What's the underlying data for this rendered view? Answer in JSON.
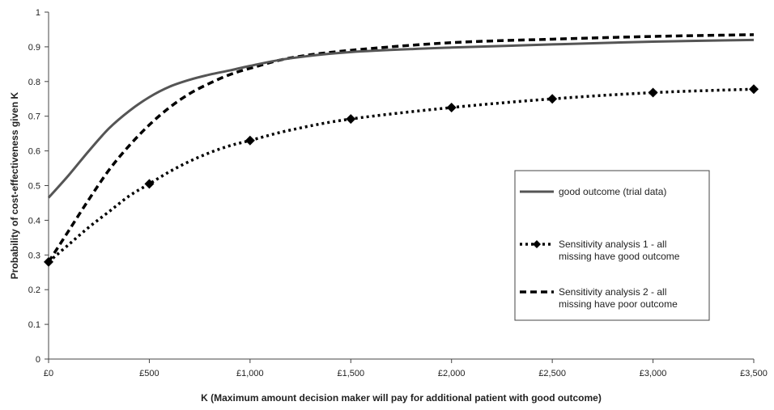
{
  "chart_data": {
    "type": "line",
    "title": "",
    "xlabel": "K (Maximum amount decision maker will pay for additional patient with good outcome)",
    "ylabel": "Probability of cost-effectiveness given K",
    "xlim": [
      0,
      3500
    ],
    "ylim": [
      0,
      1
    ],
    "x_ticks": [
      0,
      500,
      1000,
      1500,
      2000,
      2500,
      3000,
      3500
    ],
    "x_tick_labels": [
      "£0",
      "£500",
      "£1,000",
      "£1,500",
      "£2,000",
      "£2,500",
      "£3,000",
      "£3,500"
    ],
    "y_ticks": [
      0,
      0.1,
      0.2,
      0.3,
      0.4,
      0.5,
      0.6,
      0.7,
      0.8,
      0.9,
      1
    ],
    "y_tick_labels": [
      "0",
      "0.1",
      "0.2",
      "0.3",
      "0.4",
      "0.5",
      "0.6",
      "0.7",
      "0.8",
      "0.9",
      "1"
    ],
    "grid": false,
    "legend_position": "right",
    "series": [
      {
        "name": "good outcome (trial data)",
        "style": "solid",
        "color": "#555555",
        "markers": false,
        "x": [
          0,
          100,
          200,
          300,
          400,
          500,
          600,
          700,
          800,
          900,
          1000,
          1200,
          1500,
          2000,
          2500,
          3000,
          3500
        ],
        "y": [
          0.465,
          0.53,
          0.6,
          0.665,
          0.715,
          0.755,
          0.785,
          0.805,
          0.82,
          0.832,
          0.845,
          0.867,
          0.885,
          0.898,
          0.907,
          0.915,
          0.92
        ]
      },
      {
        "name": "Sensitivity analysis 1 - all missing have good outcome",
        "style": "dotted",
        "color": "#000000",
        "markers": true,
        "marker_x": [
          0,
          500,
          1000,
          1500,
          2000,
          2500,
          3000,
          3500
        ],
        "x": [
          0,
          100,
          200,
          300,
          400,
          500,
          600,
          700,
          800,
          900,
          1000,
          1200,
          1500,
          2000,
          2500,
          3000,
          3500
        ],
        "y": [
          0.28,
          0.33,
          0.38,
          0.425,
          0.47,
          0.505,
          0.54,
          0.57,
          0.595,
          0.615,
          0.63,
          0.66,
          0.692,
          0.725,
          0.75,
          0.768,
          0.778
        ]
      },
      {
        "name": "Sensitivity analysis 2 - all missing have poor outcome",
        "style": "dashed",
        "color": "#000000",
        "markers": false,
        "x": [
          0,
          100,
          200,
          300,
          400,
          500,
          600,
          700,
          800,
          900,
          1000,
          1200,
          1500,
          2000,
          2500,
          3000,
          3500
        ],
        "y": [
          0.28,
          0.37,
          0.46,
          0.545,
          0.615,
          0.675,
          0.725,
          0.765,
          0.795,
          0.82,
          0.838,
          0.868,
          0.89,
          0.912,
          0.922,
          0.93,
          0.935
        ]
      }
    ],
    "legend": {
      "entries": [
        {
          "label_lines": [
            "good outcome (trial data)"
          ]
        },
        {
          "label_lines": [
            "Sensitivity analysis 1 - all",
            "missing have good outcome"
          ]
        },
        {
          "label_lines": [
            "Sensitivity analysis 2 - all",
            "missing have poor outcome"
          ]
        }
      ]
    }
  }
}
